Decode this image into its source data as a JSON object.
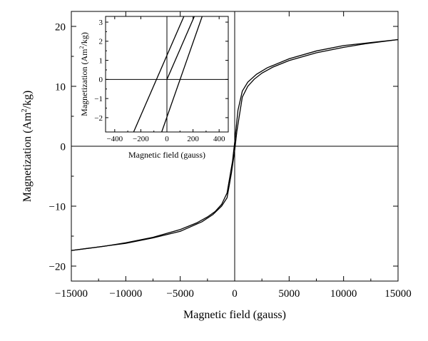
{
  "chart_data": [
    {
      "type": "line",
      "xlabel": "Magnetic field (gauss)",
      "ylabel_main": "Magnetization (Am",
      "ylabel_sup": "2",
      "ylabel_end": "/kg)",
      "xlim": [
        -15000,
        15000
      ],
      "ylim": [
        -22.5,
        22.5
      ],
      "xticks": [
        -15000,
        -10000,
        -5000,
        0,
        5000,
        10000,
        15000
      ],
      "xtick_labels": [
        "−15000",
        "−10000",
        "−5000",
        "0",
        "5000",
        "10000",
        "15000"
      ],
      "yticks": [
        -20,
        -10,
        0,
        10,
        20
      ],
      "ytick_labels": [
        "−20",
        "−10",
        "0",
        "10",
        "20"
      ],
      "series": [
        {
          "x": [
            -15000,
            -12000,
            -10000,
            -7500,
            -5000,
            -3500,
            -2500,
            -1800,
            -1200,
            -700,
            -200,
            0,
            300,
            700,
            1200,
            2000,
            3000,
            5000,
            7500,
            10000,
            12500,
            15000
          ],
          "y": [
            -17.4,
            -16.7,
            -16.1,
            -15.2,
            -13.9,
            -12.8,
            -11.8,
            -10.9,
            -9.7,
            -7.8,
            -2.5,
            0.7,
            6.0,
            9.2,
            10.7,
            12.0,
            13.1,
            14.6,
            15.9,
            16.8,
            17.3,
            17.8
          ]
        },
        {
          "x": [
            -15000,
            -12500,
            -10000,
            -7500,
            -5000,
            -3000,
            -2000,
            -1200,
            -700,
            -300,
            0,
            200,
            700,
            1200,
            1800,
            2500,
            3500,
            5000,
            7500,
            10000,
            12000,
            15000
          ],
          "y": [
            -17.4,
            -16.8,
            -16.2,
            -15.3,
            -14.2,
            -12.6,
            -11.4,
            -10.0,
            -8.6,
            -4.5,
            -0.7,
            2.5,
            8.2,
            10.0,
            11.2,
            12.2,
            13.2,
            14.3,
            15.6,
            16.5,
            17.1,
            17.8
          ]
        }
      ],
      "axes_zero_lines": true,
      "grid": false,
      "legend": "none"
    },
    {
      "type": "line",
      "xlabel": "Magnetic field (gauss)",
      "ylabel_main": "Magnetization (Am",
      "ylabel_sup": "2",
      "ylabel_end": "/kg)",
      "xlim": [
        -470,
        470
      ],
      "ylim": [
        -2.75,
        3.3
      ],
      "xticks": [
        -400,
        -200,
        0,
        200,
        400
      ],
      "xtick_labels": [
        "−400",
        "−200",
        "0",
        "200",
        "400"
      ],
      "yticks": [
        -2,
        -1,
        0,
        1,
        2,
        3
      ],
      "ytick_labels": [
        "−2",
        "−1",
        "0",
        "1",
        "2",
        "3"
      ],
      "series": [
        {
          "x": [
            -255,
            130
          ],
          "y": [
            -2.75,
            3.3
          ]
        },
        {
          "x": [
            -40,
            270
          ],
          "y": [
            -2.75,
            3.3
          ]
        },
        {
          "x": [
            0,
            210
          ],
          "y": [
            0,
            3.3
          ]
        }
      ],
      "axes_zero_lines": true,
      "grid": false,
      "legend": "none"
    }
  ]
}
